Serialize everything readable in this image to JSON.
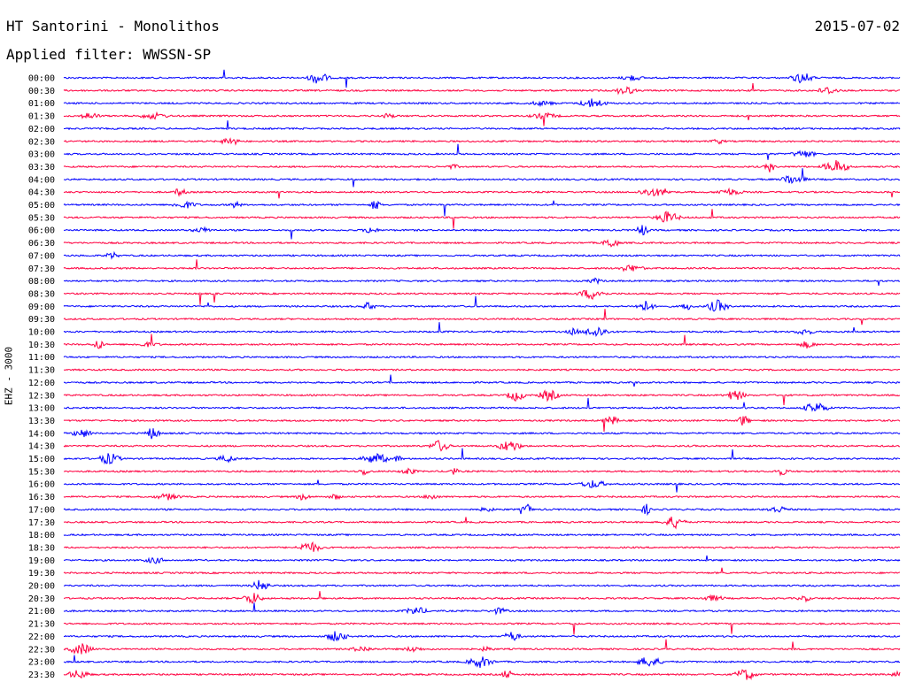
{
  "header": {
    "title": "HT Santorini - Monolithos",
    "date": "2015-07-02",
    "filter": "Applied filter: WWSSN-SP"
  },
  "chart_data": {
    "type": "line",
    "ylabel": "EHZ - 3000",
    "row_labels": [
      "00:00",
      "00:30",
      "01:00",
      "01:30",
      "02:00",
      "02:30",
      "03:00",
      "03:30",
      "04:00",
      "04:30",
      "05:00",
      "05:30",
      "06:00",
      "06:30",
      "07:00",
      "07:30",
      "08:00",
      "08:30",
      "09:00",
      "09:30",
      "10:00",
      "10:30",
      "11:00",
      "11:30",
      "12:00",
      "12:30",
      "13:00",
      "13:30",
      "14:00",
      "14:30",
      "15:00",
      "15:30",
      "16:00",
      "16:30",
      "17:00",
      "17:30",
      "18:00",
      "18:30",
      "19:00",
      "19:30",
      "20:00",
      "20:30",
      "21:00",
      "21:30",
      "22:00",
      "22:30",
      "23:00",
      "23:30"
    ],
    "colors": [
      "#0000ff",
      "#ff0040"
    ],
    "grid": false,
    "legend": "none"
  }
}
